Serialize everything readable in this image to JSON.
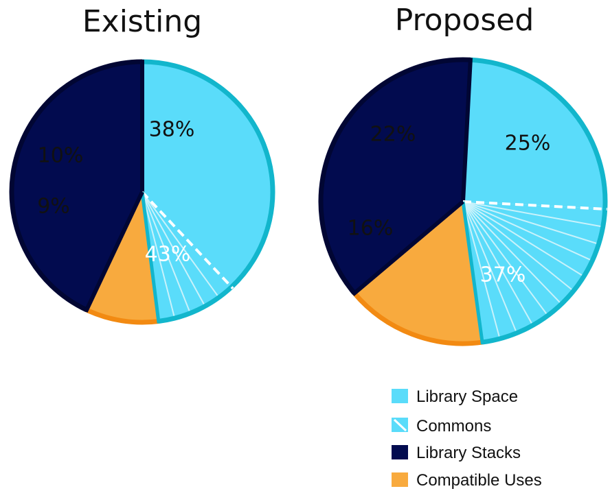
{
  "colors": {
    "library_space": "#5ADCFA",
    "library_space_border": "#12B6CC",
    "commons_hatch": "#C9F2FB",
    "library_stacks": "#020B4F",
    "library_stacks_border": "#010633",
    "compatible_uses": "#F8AA3E",
    "compatible_uses_border": "#F28A12"
  },
  "legend": {
    "items": [
      {
        "key": "library_space",
        "label": "Library Space",
        "icon": "solid-swatch-icon"
      },
      {
        "key": "commons",
        "label": "Commons",
        "icon": "hatched-swatch-icon"
      },
      {
        "key": "library_stacks",
        "label": "Library Stacks",
        "icon": "solid-swatch-icon"
      },
      {
        "key": "compatible_uses",
        "label": "Compatible Uses",
        "icon": "solid-swatch-icon"
      }
    ],
    "placement": "bottom-right"
  },
  "chart_data": [
    {
      "type": "pie",
      "title": "Existing",
      "slices": [
        {
          "category": "Library Space",
          "value": 38,
          "label": "38%"
        },
        {
          "category": "Commons",
          "value": 10,
          "label": "10%"
        },
        {
          "category": "Compatible Uses",
          "value": 9,
          "label": "9%"
        },
        {
          "category": "Library Stacks",
          "value": 43,
          "label": "43%"
        }
      ]
    },
    {
      "type": "pie",
      "title": "Proposed",
      "slices": [
        {
          "category": "Library Space",
          "value": 25,
          "label": "25%"
        },
        {
          "category": "Commons",
          "value": 22,
          "label": "22%"
        },
        {
          "category": "Compatible Uses",
          "value": 16,
          "label": "16%"
        },
        {
          "category": "Library Stacks",
          "value": 37,
          "label": "37%"
        }
      ]
    }
  ]
}
